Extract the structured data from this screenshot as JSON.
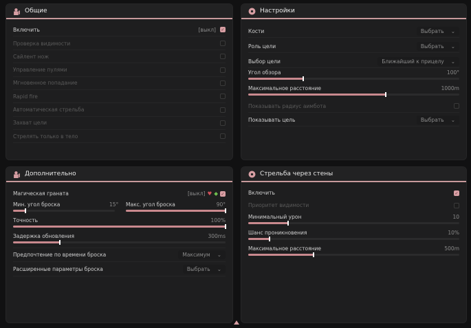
{
  "general": {
    "title": "Общие",
    "enable": {
      "label": "Включить",
      "keybind": "[выкл]",
      "checked": true
    },
    "items": [
      {
        "label": "Проверка видимости",
        "checked": false
      },
      {
        "label": "Сайлент нож",
        "checked": false
      },
      {
        "label": "Управление пулями",
        "checked": false
      },
      {
        "label": "Мгновенное попадание",
        "checked": false
      },
      {
        "label": "Rapid fire",
        "checked": false
      },
      {
        "label": "Автоматическая стрельба",
        "checked": false
      },
      {
        "label": "Захват цели",
        "checked": false
      },
      {
        "label": "Стрелять только в тело",
        "checked": false
      }
    ]
  },
  "settings": {
    "title": "Настройки",
    "bones": {
      "label": "Кости",
      "value": "Выбрать"
    },
    "role": {
      "label": "Роль цели",
      "value": "Выбрать"
    },
    "target": {
      "label": "Выбор цели",
      "value": "Ближайший к прицелу"
    },
    "fov": {
      "label": "Угол обзора",
      "value": "100°",
      "fraction": 0.26
    },
    "maxdist": {
      "label": "Максимальное расстояние",
      "value": "1000m",
      "fraction": 0.65
    },
    "radius": {
      "label": "Показывать радиус аимбота",
      "checked": false
    },
    "show": {
      "label": "Показывать цель",
      "value": "Выбрать"
    }
  },
  "extra": {
    "title": "Дополнительно",
    "grenade": {
      "label": "Магическая граната",
      "keybind": "[выкл]",
      "checked": true
    },
    "minangle": {
      "label": "Мин. угол броска",
      "value": "15°",
      "fraction": 0.12
    },
    "maxangle": {
      "label": "Макс. угол броска",
      "value": "90°",
      "fraction": 1.0
    },
    "accuracy": {
      "label": "Точность",
      "value": "100%",
      "fraction": 1.0
    },
    "delay": {
      "label": "Задержка обновления",
      "value": "300ms",
      "fraction": 0.22
    },
    "pref": {
      "label": "Предпочтение по времени броска",
      "value": "Максимум"
    },
    "adv": {
      "label": "Расширенные параметры броска",
      "value": "Выбрать"
    }
  },
  "wall": {
    "title": "Стрельба через стены",
    "enable": {
      "label": "Включить",
      "checked": true
    },
    "priority": {
      "label": "Приоритет видимости",
      "checked": false
    },
    "mindmg": {
      "label": "Минимальный урон",
      "value": "10",
      "fraction": 0.19
    },
    "chance": {
      "label": "Шанс проникновения",
      "value": "10%",
      "fraction": 0.1
    },
    "maxdist": {
      "label": "Максимальное расстояние",
      "value": "500m",
      "fraction": 0.31
    }
  },
  "colors": {
    "accent": "#d79ea3",
    "bg": "#1e1e1f"
  }
}
